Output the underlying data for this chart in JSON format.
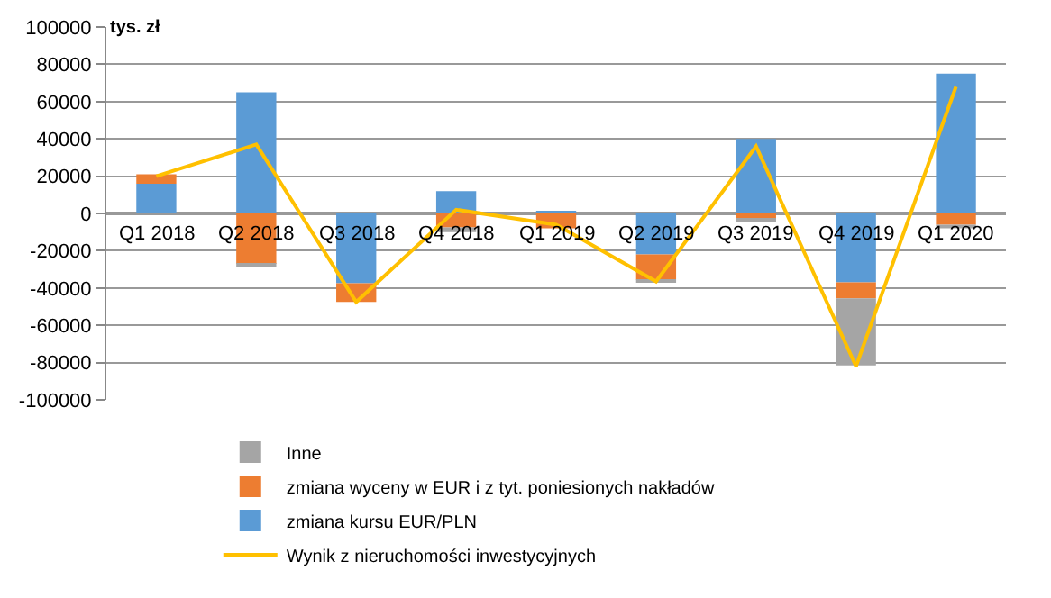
{
  "chart_data": {
    "type": "bar",
    "stacked": true,
    "ylabel": "tys. zł",
    "categories": [
      "Q1 2018",
      "Q2 2018",
      "Q3 2018",
      "Q4 2018",
      "Q1 2019",
      "Q2 2019",
      "Q3 2019",
      "Q4 2019",
      "Q1 2020"
    ],
    "series": [
      {
        "name": "zmiana kursu EUR/PLN",
        "color": "#5b9bd5",
        "values": [
          16000,
          65000,
          -37500,
          12000,
          1000,
          -22000,
          40000,
          -37000,
          75000
        ]
      },
      {
        "name": "zmiana wyceny w EUR i z tyt. poniesionych nakładów",
        "color": "#ed7d31",
        "values": [
          5000,
          -27000,
          -10000,
          -7500,
          -8000,
          -13500,
          -3000,
          -8500,
          -6000
        ]
      },
      {
        "name": "Inne",
        "color": "#a5a5a5",
        "values": [
          null,
          -1000,
          null,
          -2500,
          null,
          -1000,
          -1500,
          -36000,
          -2000
        ]
      },
      {
        "name": "Wynik z nieruchomości inwestycyjnych",
        "type": "line",
        "color": "#ffc000",
        "marker": "none",
        "values": [
          20000,
          37000,
          -47500,
          2000,
          -6000,
          -36500,
          36000,
          -82000,
          68000
        ]
      }
    ],
    "ylim": [
      -100000,
      100000
    ],
    "yticks": [
      -100000,
      -80000,
      -60000,
      -40000,
      -20000,
      0,
      20000,
      40000,
      60000,
      80000,
      100000
    ],
    "grid": "y",
    "legend": "bottom"
  }
}
